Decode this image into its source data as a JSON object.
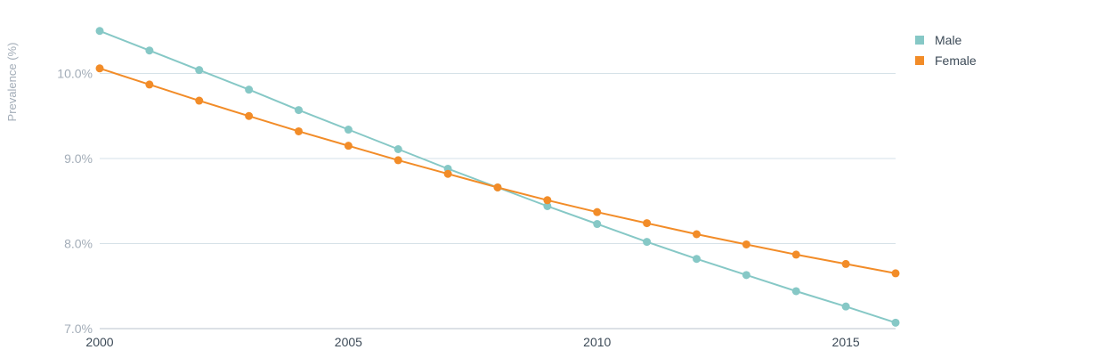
{
  "chart_data": {
    "type": "line",
    "title": "",
    "xlabel": "",
    "ylabel": "Prevalence (%)",
    "x": [
      2000,
      2001,
      2002,
      2003,
      2004,
      2005,
      2006,
      2007,
      2008,
      2009,
      2010,
      2011,
      2012,
      2013,
      2014,
      2015,
      2016
    ],
    "xlim": [
      2000,
      2016
    ],
    "ylim": [
      7.0,
      10.5
    ],
    "xticks": [
      2000,
      2005,
      2010,
      2015
    ],
    "xtick_labels": [
      "2000",
      "2005",
      "2010",
      "2015"
    ],
    "yticks": [
      7.0,
      8.0,
      9.0,
      10.0
    ],
    "ytick_labels": [
      "7.0%",
      "8.0%",
      "9.0%",
      "10.0%"
    ],
    "grid": "horizontal",
    "legend_position": "top-right",
    "series": [
      {
        "name": "Male",
        "color": "#86c8c6",
        "values": [
          10.5,
          10.27,
          10.04,
          9.81,
          9.57,
          9.34,
          9.11,
          8.88,
          8.66,
          8.44,
          8.23,
          8.02,
          7.82,
          7.63,
          7.44,
          7.26,
          7.07
        ]
      },
      {
        "name": "Female",
        "color": "#f28c28",
        "values": [
          10.06,
          9.87,
          9.68,
          9.5,
          9.32,
          9.15,
          8.98,
          8.82,
          8.66,
          8.51,
          8.37,
          8.24,
          8.11,
          7.99,
          7.87,
          7.76,
          7.65
        ]
      }
    ]
  }
}
